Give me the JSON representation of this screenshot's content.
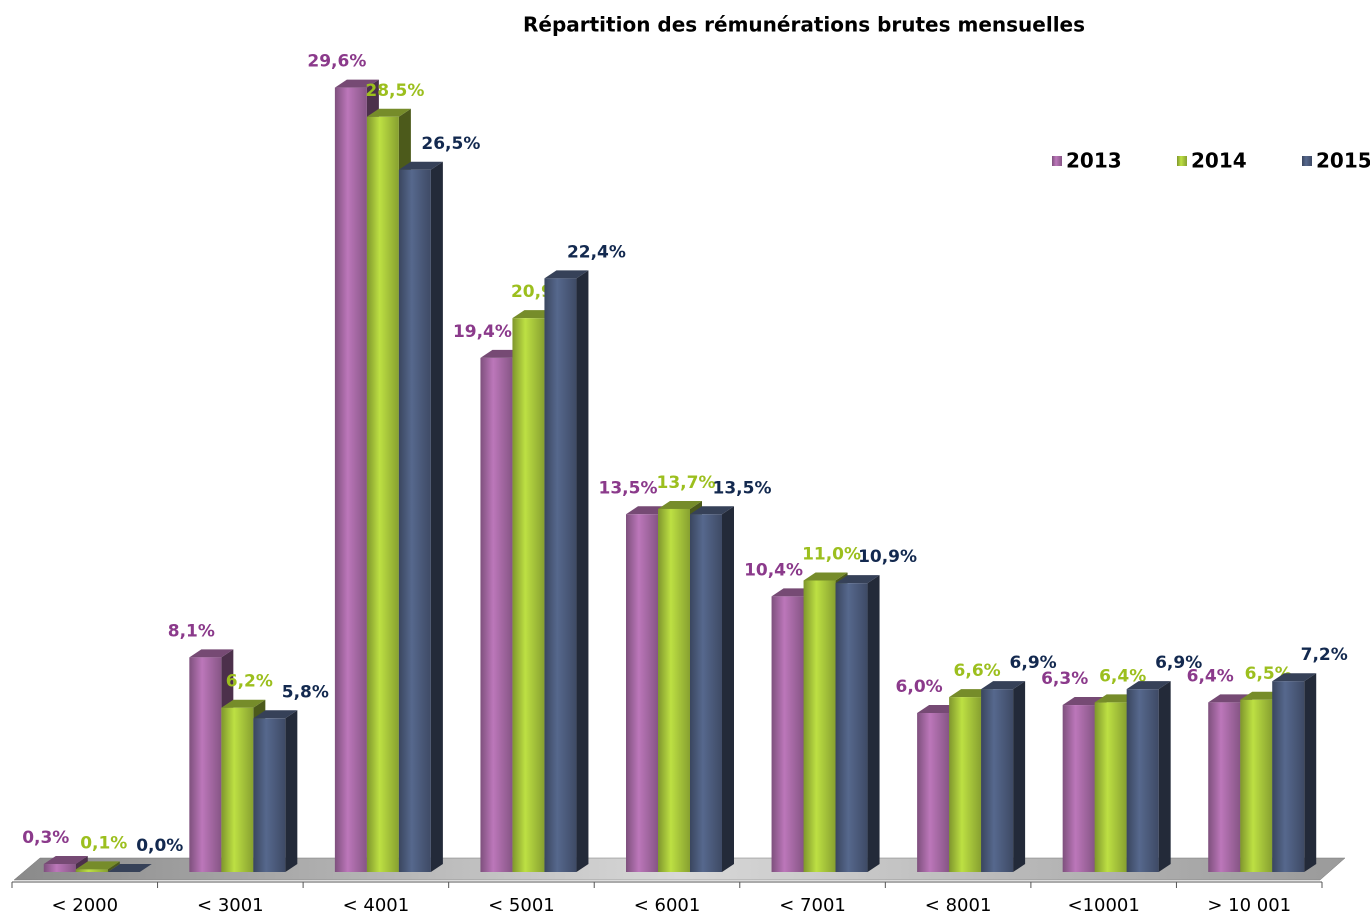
{
  "chart_data": {
    "type": "bar3d",
    "title": "Répartition des rémunérations brutes mensuelles",
    "categories": [
      "< 2000",
      "< 3001",
      "< 4001",
      "< 5001",
      "< 6001",
      "< 7001",
      "< 8001",
      "<10001",
      "> 10 001"
    ],
    "series": [
      {
        "name": "2013",
        "color": "#a86aa6",
        "label_color": "#8b3a8b",
        "values": [
          0.3,
          8.1,
          29.6,
          19.4,
          13.5,
          10.4,
          6.0,
          6.3,
          6.4
        ],
        "value_labels": [
          "0,3%",
          "8,1%",
          "29,6%",
          "19,4%",
          "13,5%",
          "10,4%",
          "6,0%",
          "6,3%",
          "6,4%"
        ]
      },
      {
        "name": "2014",
        "color": "#a9c83c",
        "label_color": "#9cbf1e",
        "values": [
          0.1,
          6.2,
          28.5,
          20.9,
          13.7,
          11.0,
          6.6,
          6.4,
          6.5
        ],
        "value_labels": [
          "0,1%",
          "6,2%",
          "28,5%",
          "20,9%",
          "13,7%",
          "11,0%",
          "6,6%",
          "6,4%",
          "6,5%"
        ]
      },
      {
        "name": "2015",
        "color": "#4d5d7e",
        "label_color": "#13294f",
        "values": [
          0.0,
          5.8,
          26.5,
          22.4,
          13.5,
          10.9,
          6.9,
          6.9,
          7.2
        ],
        "value_labels": [
          "0,0%",
          "5,8%",
          "26,5%",
          "22,4%",
          "13,5%",
          "10,9%",
          "6,9%",
          "6,9%",
          "7,2%"
        ]
      }
    ],
    "legend": "top-right"
  }
}
